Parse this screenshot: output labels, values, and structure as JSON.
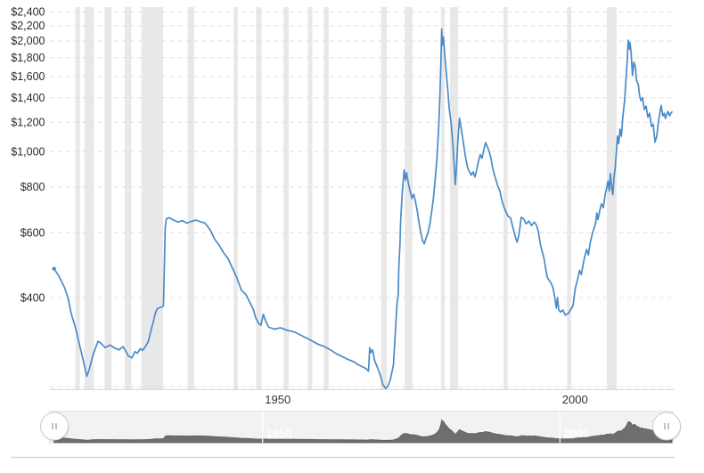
{
  "chart_data": {
    "type": "line",
    "title": "",
    "y_axis": {
      "scale": "log",
      "unit": "USD",
      "tick_labels": [
        "$2,400",
        "$2,200",
        "$2,000",
        "$1,800",
        "$1,600",
        "$1,400",
        "$1,200",
        "$1,000",
        "$800",
        "$600",
        "$400"
      ],
      "tick_values": [
        2400,
        2200,
        2000,
        1800,
        1600,
        1400,
        1200,
        1000,
        800,
        600,
        400
      ],
      "grid": "dashed"
    },
    "x_axis": {
      "tick_labels": [
        "1950",
        "2000"
      ],
      "tick_years": [
        1950,
        2000
      ]
    },
    "series": [
      {
        "name": "gold-price-usd",
        "color": "#4a8bc7",
        "points": [
          [
            1914.9,
            479
          ],
          [
            1915.7,
            458
          ],
          [
            1916.6,
            428
          ],
          [
            1917.2,
            402
          ],
          [
            1917.8,
            361
          ],
          [
            1918.5,
            331
          ],
          [
            1919.3,
            292
          ],
          [
            1919.9,
            266
          ],
          [
            1920.4,
            244
          ],
          [
            1920.8,
            254
          ],
          [
            1921.4,
            277
          ],
          [
            1922.0,
            295
          ],
          [
            1922.3,
            304
          ],
          [
            1922.9,
            299
          ],
          [
            1923.5,
            292
          ],
          [
            1924.3,
            297
          ],
          [
            1925.0,
            292
          ],
          [
            1925.8,
            288
          ],
          [
            1926.5,
            294
          ],
          [
            1927.0,
            285
          ],
          [
            1927.4,
            277
          ],
          [
            1928.0,
            274
          ],
          [
            1928.5,
            285
          ],
          [
            1928.9,
            282
          ],
          [
            1929.4,
            290
          ],
          [
            1929.8,
            287
          ],
          [
            1930.3,
            295
          ],
          [
            1930.7,
            302
          ],
          [
            1931.0,
            315
          ],
          [
            1931.3,
            330
          ],
          [
            1931.6,
            344
          ],
          [
            1931.9,
            361
          ],
          [
            1932.2,
            372
          ],
          [
            1932.6,
            375
          ],
          [
            1933.0,
            377
          ],
          [
            1933.3,
            380
          ],
          [
            1933.45,
            480
          ],
          [
            1933.6,
            620
          ],
          [
            1933.8,
            655
          ],
          [
            1934.3,
            660
          ],
          [
            1935.0,
            650
          ],
          [
            1935.8,
            642
          ],
          [
            1936.5,
            648
          ],
          [
            1937.2,
            638
          ],
          [
            1938.0,
            645
          ],
          [
            1938.8,
            650
          ],
          [
            1939.5,
            643
          ],
          [
            1940.3,
            638
          ],
          [
            1941.2,
            610
          ],
          [
            1941.9,
            577
          ],
          [
            1942.7,
            555
          ],
          [
            1943.4,
            530
          ],
          [
            1944.2,
            510
          ],
          [
            1944.9,
            481
          ],
          [
            1945.7,
            451
          ],
          [
            1946.4,
            419
          ],
          [
            1947.2,
            407
          ],
          [
            1947.9,
            386
          ],
          [
            1948.4,
            372
          ],
          [
            1948.8,
            353
          ],
          [
            1949.3,
            340
          ],
          [
            1949.7,
            336
          ],
          [
            1950.1,
            360
          ],
          [
            1950.5,
            345
          ],
          [
            1951.0,
            332
          ],
          [
            1952.0,
            328
          ],
          [
            1953.0,
            331
          ],
          [
            1954.0,
            326
          ],
          [
            1955.4,
            322
          ],
          [
            1956.4,
            316
          ],
          [
            1957.4,
            310
          ],
          [
            1958.4,
            304
          ],
          [
            1959.4,
            298
          ],
          [
            1960.4,
            294
          ],
          [
            1961.4,
            288
          ],
          [
            1962.4,
            281
          ],
          [
            1963.4,
            276
          ],
          [
            1964.4,
            271
          ],
          [
            1965.4,
            267
          ],
          [
            1965.9,
            263
          ],
          [
            1966.6,
            260
          ],
          [
            1967.4,
            256
          ],
          [
            1967.8,
            252
          ],
          [
            1968.0,
            292
          ],
          [
            1968.2,
            283
          ],
          [
            1968.5,
            288
          ],
          [
            1968.8,
            270
          ],
          [
            1969.3,
            258
          ],
          [
            1969.8,
            245
          ],
          [
            1970.2,
            232
          ],
          [
            1970.7,
            226
          ],
          [
            1971.1,
            230
          ],
          [
            1971.5,
            240
          ],
          [
            1972.0,
            262
          ],
          [
            1972.6,
            385
          ],
          [
            1972.8,
            407
          ],
          [
            1972.9,
            481
          ],
          [
            1973.1,
            565
          ],
          [
            1973.2,
            640
          ],
          [
            1973.5,
            779
          ],
          [
            1973.8,
            890
          ],
          [
            1974.0,
            835
          ],
          [
            1974.2,
            875
          ],
          [
            1974.5,
            820
          ],
          [
            1974.8,
            780
          ],
          [
            1975.1,
            745
          ],
          [
            1975.4,
            765
          ],
          [
            1975.7,
            730
          ],
          [
            1976.0,
            690
          ],
          [
            1976.3,
            640
          ],
          [
            1976.6,
            600
          ],
          [
            1976.9,
            570
          ],
          [
            1977.2,
            560
          ],
          [
            1977.5,
            582
          ],
          [
            1977.8,
            600
          ],
          [
            1978.1,
            630
          ],
          [
            1978.4,
            680
          ],
          [
            1978.7,
            740
          ],
          [
            1979.0,
            830
          ],
          [
            1979.3,
            950
          ],
          [
            1979.6,
            1150
          ],
          [
            1979.8,
            1400
          ],
          [
            1980.0,
            1800
          ],
          [
            1980.1,
            2155
          ],
          [
            1980.25,
            1950
          ],
          [
            1980.4,
            2050
          ],
          [
            1980.6,
            1850
          ],
          [
            1980.8,
            1700
          ],
          [
            1981.1,
            1500
          ],
          [
            1981.4,
            1300
          ],
          [
            1981.7,
            1200
          ],
          [
            1982.0,
            1050
          ],
          [
            1982.2,
            920
          ],
          [
            1982.4,
            812
          ],
          [
            1982.6,
            900
          ],
          [
            1982.8,
            1050
          ],
          [
            1983.1,
            1233
          ],
          [
            1983.3,
            1180
          ],
          [
            1983.6,
            1100
          ],
          [
            1983.9,
            1020
          ],
          [
            1984.2,
            950
          ],
          [
            1984.5,
            900
          ],
          [
            1984.8,
            880
          ],
          [
            1985.1,
            862
          ],
          [
            1985.4,
            880
          ],
          [
            1985.7,
            852
          ],
          [
            1986.0,
            890
          ],
          [
            1986.3,
            940
          ],
          [
            1986.6,
            980
          ],
          [
            1986.9,
            958
          ],
          [
            1987.2,
            1010
          ],
          [
            1987.5,
            1057
          ],
          [
            1987.8,
            1030
          ],
          [
            1988.1,
            1000
          ],
          [
            1988.4,
            960
          ],
          [
            1988.7,
            900
          ],
          [
            1989.0,
            862
          ],
          [
            1989.3,
            830
          ],
          [
            1989.6,
            800
          ],
          [
            1989.9,
            782
          ],
          [
            1990.2,
            740
          ],
          [
            1990.6,
            705
          ],
          [
            1991.0,
            680
          ],
          [
            1991.3,
            665
          ],
          [
            1991.7,
            660
          ],
          [
            1992.1,
            620
          ],
          [
            1992.5,
            585
          ],
          [
            1992.8,
            566
          ],
          [
            1993.1,
            592
          ],
          [
            1993.5,
            662
          ],
          [
            1993.9,
            655
          ],
          [
            1994.3,
            635
          ],
          [
            1994.8,
            646
          ],
          [
            1995.2,
            628
          ],
          [
            1995.7,
            642
          ],
          [
            1996.1,
            628
          ],
          [
            1996.4,
            601
          ],
          [
            1996.7,
            560
          ],
          [
            1997.0,
            535
          ],
          [
            1997.3,
            514
          ],
          [
            1997.6,
            479
          ],
          [
            1997.9,
            453
          ],
          [
            1998.2,
            445
          ],
          [
            1998.5,
            438
          ],
          [
            1998.8,
            427
          ],
          [
            1999.1,
            404
          ],
          [
            1999.4,
            374
          ],
          [
            1999.6,
            400
          ],
          [
            1999.8,
            370
          ],
          [
            2000.1,
            365
          ],
          [
            2000.5,
            370
          ],
          [
            2000.9,
            358
          ],
          [
            2001.4,
            362
          ],
          [
            2001.8,
            370
          ],
          [
            2002.2,
            380
          ],
          [
            2002.6,
            424
          ],
          [
            2003.0,
            450
          ],
          [
            2003.3,
            474
          ],
          [
            2003.6,
            462
          ],
          [
            2004.1,
            510
          ],
          [
            2004.5,
            541
          ],
          [
            2004.8,
            522
          ],
          [
            2005.1,
            563
          ],
          [
            2005.5,
            601
          ],
          [
            2006.0,
            635
          ],
          [
            2006.2,
            680
          ],
          [
            2006.4,
            652
          ],
          [
            2006.7,
            690
          ],
          [
            2007.0,
            720
          ],
          [
            2007.3,
            702
          ],
          [
            2007.6,
            760
          ],
          [
            2007.9,
            800
          ],
          [
            2008.1,
            830
          ],
          [
            2008.3,
            780
          ],
          [
            2008.5,
            870
          ],
          [
            2008.7,
            800
          ],
          [
            2008.9,
            762
          ],
          [
            2009.1,
            850
          ],
          [
            2009.3,
            900
          ],
          [
            2009.5,
            1000
          ],
          [
            2009.7,
            1100
          ],
          [
            2009.9,
            1050
          ],
          [
            2010.1,
            1150
          ],
          [
            2010.35,
            1100
          ],
          [
            2010.6,
            1250
          ],
          [
            2010.9,
            1380
          ],
          [
            2011.1,
            1550
          ],
          [
            2011.3,
            1750
          ],
          [
            2011.5,
            2010
          ],
          [
            2011.65,
            1900
          ],
          [
            2011.8,
            1980
          ],
          [
            2012.0,
            1850
          ],
          [
            2012.2,
            1610
          ],
          [
            2012.45,
            1750
          ],
          [
            2012.7,
            1700
          ],
          [
            2012.9,
            1560
          ],
          [
            2013.2,
            1520
          ],
          [
            2013.4,
            1420
          ],
          [
            2013.65,
            1375
          ],
          [
            2013.9,
            1400
          ],
          [
            2014.2,
            1300
          ],
          [
            2014.5,
            1330
          ],
          [
            2014.8,
            1240
          ],
          [
            2015.1,
            1270
          ],
          [
            2015.4,
            1170
          ],
          [
            2015.7,
            1185
          ],
          [
            2016.0,
            1060
          ],
          [
            2016.3,
            1100
          ],
          [
            2016.6,
            1210
          ],
          [
            2016.9,
            1300
          ],
          [
            2017.05,
            1335
          ],
          [
            2017.3,
            1250
          ],
          [
            2017.55,
            1270
          ],
          [
            2017.75,
            1230
          ],
          [
            2017.95,
            1260
          ],
          [
            2018.2,
            1285
          ],
          [
            2018.45,
            1250
          ],
          [
            2018.65,
            1270
          ],
          [
            2018.85,
            1280
          ]
        ]
      }
    ],
    "recession_bands": {
      "color": "#e8e8e8",
      "ranges": [
        [
          1918.5,
          1919.25
        ],
        [
          1920.0,
          1921.6
        ],
        [
          1923.4,
          1924.6
        ],
        [
          1926.8,
          1927.9
        ],
        [
          1929.6,
          1933.25
        ],
        [
          1937.4,
          1938.5
        ],
        [
          1945.1,
          1945.8
        ],
        [
          1948.9,
          1949.8
        ],
        [
          1953.5,
          1954.4
        ],
        [
          1957.6,
          1958.35
        ],
        [
          1960.3,
          1961.1
        ],
        [
          1969.9,
          1970.9
        ],
        [
          1973.9,
          1975.2
        ],
        [
          1980.0,
          1980.6
        ],
        [
          1981.5,
          1982.9
        ],
        [
          1990.5,
          1991.2
        ],
        [
          2001.2,
          2001.9
        ],
        [
          2007.9,
          2009.55
        ]
      ]
    },
    "navigator": {
      "tick_labels": [
        "1950",
        "2000"
      ],
      "tick_years": [
        1950,
        2000
      ],
      "area_color": "#6e6e6e",
      "track_color": "#f2f2f2",
      "handle_glyph": "||"
    },
    "colors": {
      "line": "#4a8bc7",
      "grid": "#e0e0e0",
      "axis_text": "#333333",
      "band": "#e8e8e8",
      "nav_area": "#6e6e6e",
      "nav_track": "#f2f2f2",
      "divider": "#d9d9d9"
    }
  }
}
